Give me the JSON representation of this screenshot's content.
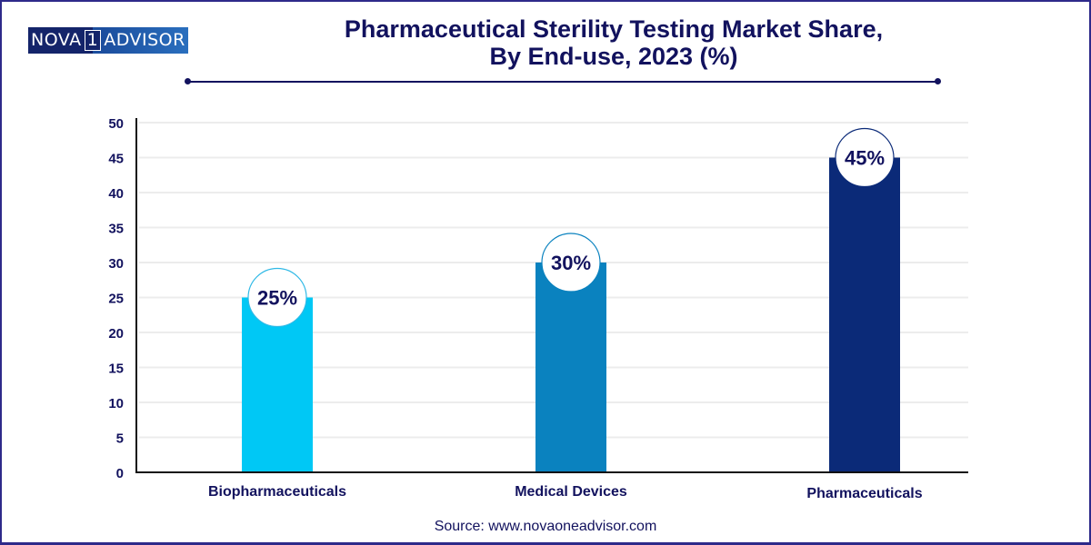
{
  "logo": {
    "part1": "NOVA",
    "part2": "1",
    "part3": "ADVISOR"
  },
  "title_line1": "Pharmaceutical Sterility Testing Market Share,",
  "title_line2": "By End-use, 2023 (%)",
  "source": "Source: www.novaoneadvisor.com",
  "colors": {
    "text": "#12125e",
    "biopharmaceuticals": "#00c8f5",
    "medical_devices": "#0a82bf",
    "pharmaceuticals": "#0b2a78",
    "grid": "#ececec"
  },
  "chart_data": {
    "type": "bar",
    "title": "Pharmaceutical Sterility Testing Market Share, By End-use, 2023 (%)",
    "categories": [
      "Biopharmaceuticals",
      "Medical Devices",
      "Pharmaceuticals"
    ],
    "values": [
      25,
      30,
      45
    ],
    "data_labels": [
      "25%",
      "30%",
      "45%"
    ],
    "xlabel": "",
    "ylabel": "",
    "ylim": [
      0,
      50
    ],
    "yticks": [
      0,
      5,
      10,
      15,
      20,
      25,
      30,
      35,
      40,
      45,
      50
    ],
    "grid": true,
    "legend": "none"
  }
}
